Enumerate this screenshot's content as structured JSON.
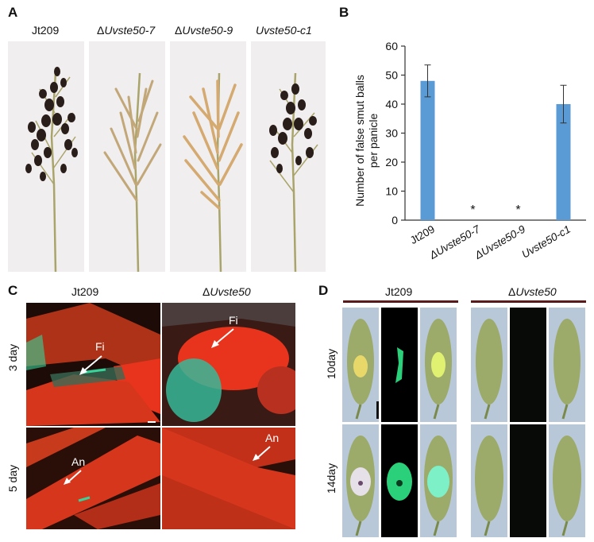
{
  "panel_a": {
    "label": "A",
    "columns": [
      {
        "prefix": "",
        "name": "Jt209"
      },
      {
        "prefix": "Δ",
        "name": "Uvste50-7"
      },
      {
        "prefix": "Δ",
        "name": "Uvste50-9"
      },
      {
        "prefix": "",
        "name": "Uvste50-c1"
      }
    ]
  },
  "panel_b": {
    "label": "B",
    "significance_marker": "*"
  },
  "chart_data": {
    "type": "bar",
    "categories": [
      "Jt209",
      "ΔUvste50-7",
      "ΔUvste50-9",
      "Uvste50-c1"
    ],
    "values": [
      48,
      0,
      0,
      40
    ],
    "errors": [
      5.5,
      0,
      0,
      6.5
    ],
    "significant": [
      false,
      true,
      true,
      false
    ],
    "ylabel_line1": "Number of false smut balls",
    "ylabel_line2": "per panicle",
    "ylim": [
      0,
      60
    ],
    "yticks": [
      0,
      10,
      20,
      30,
      40,
      50,
      60
    ],
    "bar_color": "#5b9bd5",
    "grid": false
  },
  "panel_c": {
    "label": "C",
    "col1": {
      "prefix": "",
      "name": "Jt209"
    },
    "col2": {
      "prefix": "Δ",
      "name": "Uvste50"
    },
    "row1": "3 day",
    "row2": "5 day",
    "annotations": {
      "fi": "Fi",
      "an": "An"
    }
  },
  "panel_d": {
    "label": "D",
    "group1": {
      "prefix": "",
      "name": "Jt209"
    },
    "group2": {
      "prefix": "Δ",
      "name": "Uvste50"
    },
    "row1": "10day",
    "row2": "14day"
  },
  "colors": {
    "red_tissue": "#e8341c",
    "gfp": "#36d39a",
    "dark_smut": "#2a1e1a",
    "grain_green": "#9caa6a"
  }
}
